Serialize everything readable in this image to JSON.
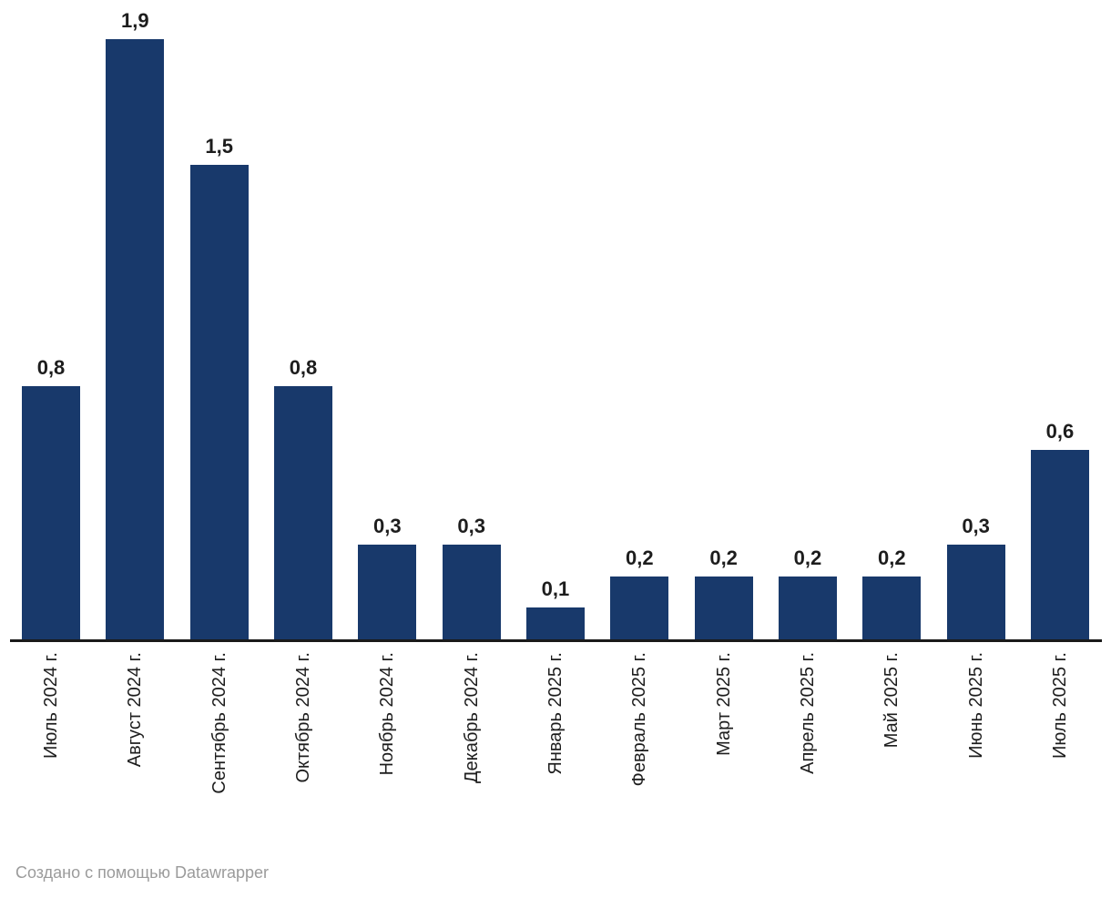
{
  "chart_data": {
    "type": "bar",
    "categories": [
      "Июль 2024 г.",
      "Август 2024 г.",
      "Сентябрь 2024 г.",
      "Октябрь 2024 г.",
      "Ноябрь 2024 г.",
      "Декабрь 2024 г.",
      "Январь 2025 г.",
      "Февраль 2025 г.",
      "Март 2025 г.",
      "Апрель 2025 г.",
      "Май 2025 г.",
      "Июнь 2025 г.",
      "Июль 2025 г."
    ],
    "values": [
      0.8,
      1.9,
      1.5,
      0.8,
      0.3,
      0.3,
      0.1,
      0.2,
      0.2,
      0.2,
      0.2,
      0.3,
      0.6
    ],
    "value_labels": [
      "0,8",
      "1,9",
      "1,5",
      "0,8",
      "0,3",
      "0,3",
      "0,1",
      "0,2",
      "0,2",
      "0,2",
      "0,2",
      "0,3",
      "0,6"
    ],
    "title": "",
    "xlabel": "",
    "ylabel": "",
    "ylim": [
      0,
      1.9
    ],
    "grid": false,
    "legend": false,
    "bar_color": "#18396B",
    "axis_line_color": "#1a1a1a",
    "value_label_color": "#1d1d1d",
    "tick_label_color": "#1d1d1d"
  },
  "footer": {
    "attribution": "Создано с помощью Datawrapper",
    "color": "#9b9b9b"
  }
}
